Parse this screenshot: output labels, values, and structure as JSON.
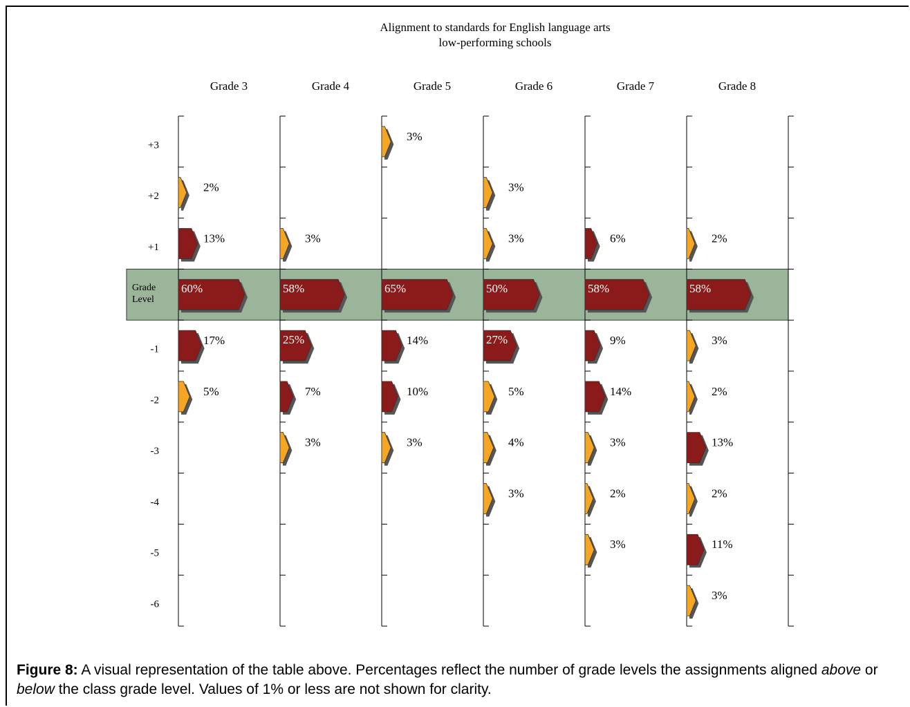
{
  "chart_data": {
    "type": "arrow-grid",
    "title": "Alignment to standards for English language arts",
    "subtitle": "low-performing schools",
    "categories": [
      "+3",
      "+2",
      "+1",
      "Grade Level",
      "-1",
      "-2",
      "-3",
      "-4",
      "-5",
      "-6"
    ],
    "band_color": "#9bb59b",
    "series": [
      {
        "name": "Grade 3",
        "values": [
          null,
          2,
          13,
          60,
          17,
          5,
          null,
          null,
          null,
          null
        ],
        "value_labels": [
          null,
          "2%",
          "13%",
          "60%",
          "17%",
          "5%",
          null,
          null,
          null,
          null
        ],
        "colors": [
          null,
          "#f5a623",
          "#8b1a1a",
          "#8b1a1a",
          "#8b1a1a",
          "#f5a623",
          null,
          null,
          null,
          null
        ]
      },
      {
        "name": "Grade 4",
        "values": [
          null,
          null,
          3,
          58,
          25,
          7,
          3,
          null,
          null,
          null
        ],
        "value_labels": [
          null,
          null,
          "3%",
          "58%",
          "25%",
          "7%",
          "3%",
          null,
          null,
          null
        ],
        "colors": [
          null,
          null,
          "#f5a623",
          "#8b1a1a",
          "#8b1a1a",
          "#8b1a1a",
          "#f5a623",
          null,
          null,
          null
        ]
      },
      {
        "name": "Grade 5",
        "values": [
          3,
          null,
          null,
          65,
          14,
          10,
          3,
          null,
          null,
          null
        ],
        "value_labels": [
          "3%",
          null,
          null,
          "65%",
          "14%",
          "10%",
          "3%",
          null,
          null,
          null
        ],
        "colors": [
          "#f5a623",
          null,
          null,
          "#8b1a1a",
          "#8b1a1a",
          "#8b1a1a",
          "#f5a623",
          null,
          null,
          null
        ]
      },
      {
        "name": "Grade 6",
        "values": [
          null,
          3,
          3,
          50,
          27,
          5,
          4,
          3,
          null,
          null
        ],
        "value_labels": [
          null,
          "3%",
          "3%",
          "50%",
          "27%",
          "5%",
          "4%",
          "3%",
          null,
          null
        ],
        "colors": [
          null,
          "#f5a623",
          "#f5a623",
          "#8b1a1a",
          "#8b1a1a",
          "#f5a623",
          "#f5a623",
          "#f5a623",
          null,
          null
        ]
      },
      {
        "name": "Grade 7",
        "values": [
          null,
          null,
          6,
          58,
          9,
          14,
          3,
          2,
          3,
          null
        ],
        "value_labels": [
          null,
          null,
          "6%",
          "58%",
          "9%",
          "14%",
          "3%",
          "2%",
          "3%",
          null
        ],
        "colors": [
          null,
          null,
          "#8b1a1a",
          "#8b1a1a",
          "#8b1a1a",
          "#8b1a1a",
          "#f5a623",
          "#f5a623",
          "#f5a623",
          null
        ]
      },
      {
        "name": "Grade 8",
        "values": [
          null,
          null,
          2,
          58,
          3,
          2,
          13,
          2,
          11,
          3
        ],
        "value_labels": [
          null,
          null,
          "2%",
          "58%",
          "3%",
          "2%",
          "13%",
          "2%",
          "11%",
          "3%"
        ],
        "colors": [
          null,
          null,
          "#f5a623",
          "#8b1a1a",
          "#f5a623",
          "#f5a623",
          "#8b1a1a",
          "#f5a623",
          "#8b1a1a",
          "#f5a623"
        ]
      }
    ]
  },
  "caption": {
    "label": "Figure 8:",
    "parts": [
      " A visual representation of the table above. Percentages reflect the number of grade levels the assignments aligned ",
      "above",
      " or ",
      "below",
      " the class grade level. Values of 1% or less are not shown for clarity."
    ]
  }
}
